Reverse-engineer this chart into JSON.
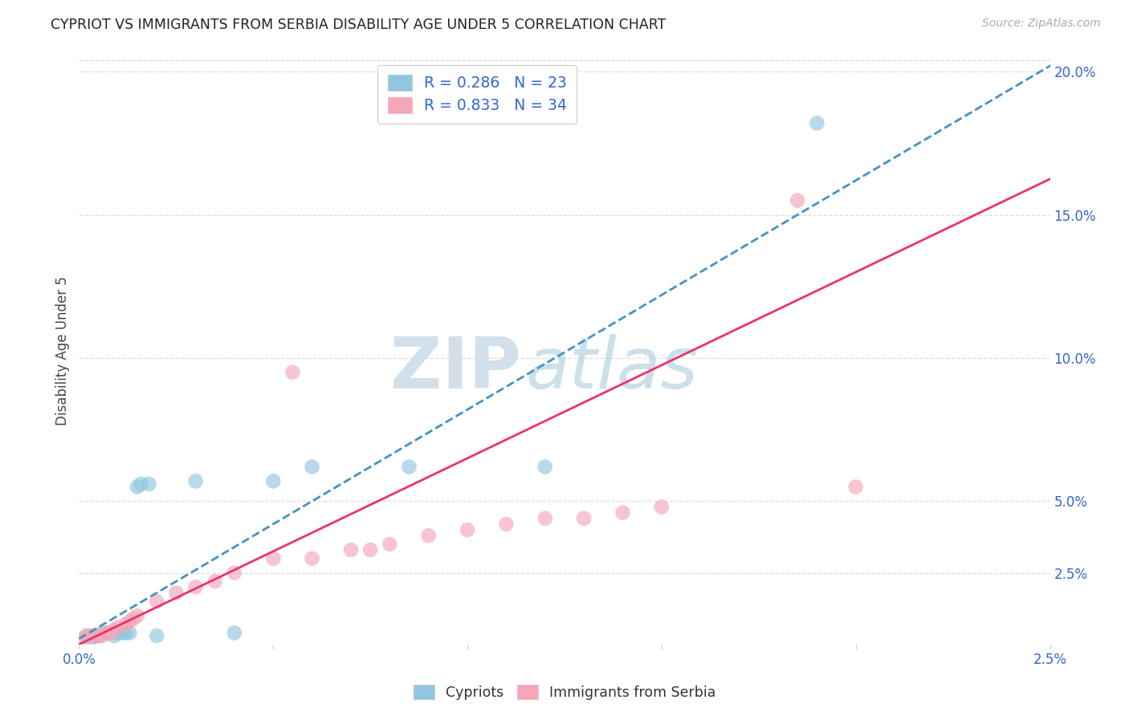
{
  "title": "CYPRIOT VS IMMIGRANTS FROM SERBIA DISABILITY AGE UNDER 5 CORRELATION CHART",
  "source": "Source: ZipAtlas.com",
  "ylabel": "Disability Age Under 5",
  "cypriot_R": 0.286,
  "cypriot_N": 23,
  "serbia_R": 0.833,
  "serbia_N": 34,
  "xmin": 0.0,
  "xmax": 0.025,
  "ymin": 0.0,
  "ymax": 0.205,
  "right_ytick_vals": [
    0.025,
    0.05,
    0.1,
    0.15,
    0.2
  ],
  "right_ytick_labels": [
    "2.5%",
    "5.0%",
    "10.0%",
    "15.0%",
    "20.0%"
  ],
  "xtick_vals": [
    0.0,
    0.005,
    0.01,
    0.015,
    0.02,
    0.025
  ],
  "xtick_labels": [
    "0.0%",
    "",
    "",
    "",
    "",
    "2.5%"
  ],
  "cypriot_color": "#92c5de",
  "serbia_color": "#f4a7b9",
  "cypriot_line_color": "#4393c3",
  "serbia_line_color": "#e8336e",
  "cypriot_line_slope": 8.0,
  "cypriot_line_intercept": 0.002,
  "serbia_line_slope": 6.5,
  "serbia_line_intercept": 0.0,
  "cypriot_x": [
    0.0002,
    0.0003,
    0.0004,
    0.0005,
    0.0006,
    0.0007,
    0.0008,
    0.0009,
    0.001,
    0.0011,
    0.0012,
    0.0013,
    0.0015,
    0.0016,
    0.0018,
    0.002,
    0.003,
    0.004,
    0.005,
    0.006,
    0.0085,
    0.012,
    0.019
  ],
  "cypriot_y": [
    0.003,
    0.002,
    0.003,
    0.003,
    0.004,
    0.004,
    0.004,
    0.003,
    0.004,
    0.004,
    0.004,
    0.004,
    0.055,
    0.056,
    0.056,
    0.003,
    0.057,
    0.004,
    0.057,
    0.062,
    0.062,
    0.062,
    0.182
  ],
  "serbia_x": [
    0.0001,
    0.0002,
    0.0003,
    0.0004,
    0.0005,
    0.0006,
    0.0007,
    0.0008,
    0.0009,
    0.001,
    0.0012,
    0.0013,
    0.0014,
    0.0015,
    0.002,
    0.0025,
    0.003,
    0.0035,
    0.004,
    0.005,
    0.0055,
    0.006,
    0.007,
    0.0075,
    0.008,
    0.009,
    0.01,
    0.011,
    0.012,
    0.013,
    0.014,
    0.015,
    0.0185,
    0.02
  ],
  "serbia_y": [
    0.002,
    0.003,
    0.003,
    0.003,
    0.003,
    0.003,
    0.004,
    0.004,
    0.005,
    0.006,
    0.007,
    0.008,
    0.009,
    0.01,
    0.015,
    0.018,
    0.02,
    0.022,
    0.025,
    0.03,
    0.095,
    0.03,
    0.033,
    0.033,
    0.035,
    0.038,
    0.04,
    0.042,
    0.044,
    0.044,
    0.046,
    0.048,
    0.155,
    0.055
  ]
}
